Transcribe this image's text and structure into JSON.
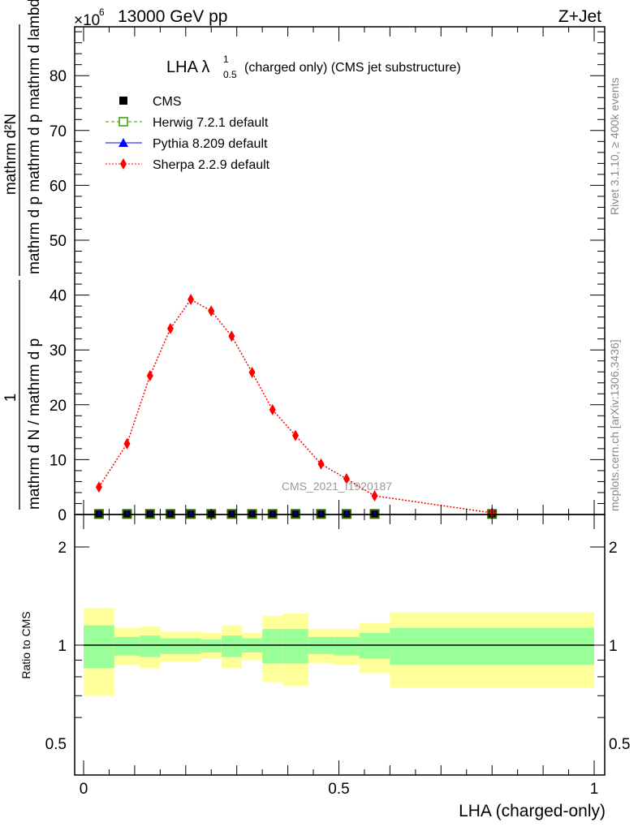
{
  "header": {
    "energy_label": "13000 GeV pp",
    "process_label": "Z+Jet",
    "exponent_label": "×10",
    "exponent_power": "6"
  },
  "side_labels": {
    "rivet": "Rivet 3.1.10, ≥ 400k events",
    "mcplots": "mcplots.cern.ch [arXiv:1306.3436]"
  },
  "watermark": "CMS_2021_I1920187",
  "chart_data": [
    {
      "type": "line",
      "title": "LHA λ",
      "title_sup": "1",
      "title_sub": "0.5",
      "title_rest": "(charged only) (CMS jet substructure)",
      "ylabel_num1": "1",
      "ylabel_den1": "mathrm d N / mathrm d p",
      "ylabel_num2": "mathrm d²N",
      "ylabel_den2": "mathrm d p  mathrm d p  mathrm d lambda",
      "xlim": [
        0,
        1
      ],
      "ylim": [
        0,
        88
      ],
      "yticks": [
        0,
        10,
        20,
        30,
        40,
        50,
        60,
        70,
        80
      ],
      "legend": [
        "CMS",
        "Herwig 7.2.1 default",
        "Pythia 8.209 default",
        "Sherpa 2.2.9 default"
      ],
      "legend_placement": "top-left",
      "x": [
        0.03,
        0.085,
        0.13,
        0.17,
        0.21,
        0.25,
        0.29,
        0.33,
        0.37,
        0.415,
        0.465,
        0.515,
        0.57,
        0.8
      ],
      "series": [
        {
          "name": "CMS",
          "color": "#000000",
          "values": [
            0.1,
            0.1,
            0.1,
            0.1,
            0.1,
            0.1,
            0.1,
            0.1,
            0.1,
            0.1,
            0.1,
            0.1,
            0.1,
            0.1
          ]
        },
        {
          "name": "Herwig 7.2.1 default",
          "color": "#339900",
          "values": [
            0.1,
            0.1,
            0.1,
            0.1,
            0.1,
            0.1,
            0.1,
            0.1,
            0.1,
            0.1,
            0.1,
            0.1,
            0.1,
            0.1
          ]
        },
        {
          "name": "Pythia 8.209 default",
          "color": "#0000ff",
          "values": [
            0.1,
            0.1,
            0.1,
            0.1,
            0.1,
            0.1,
            0.1,
            0.1,
            0.1,
            0.1,
            0.1,
            0.1,
            0.1,
            0.1
          ]
        },
        {
          "name": "Sherpa 2.2.9 default",
          "color": "#ff0000",
          "values": [
            5.0,
            12.9,
            25.3,
            33.9,
            39.2,
            37.1,
            32.5,
            25.9,
            19.1,
            14.4,
            9.2,
            6.5,
            3.4,
            0.3
          ]
        }
      ]
    },
    {
      "type": "area",
      "ylabel": "Ratio to CMS",
      "xlabel": "LHA (charged-only)",
      "xlim": [
        0,
        1
      ],
      "ylim": [
        0.6,
        2.3
      ],
      "yscale": "log",
      "yticks": [
        "0.5",
        "1",
        "2"
      ],
      "xticks": [
        "0",
        "0.5",
        "1"
      ],
      "bin_edges": [
        0,
        0.06,
        0.11,
        0.15,
        0.23,
        0.27,
        0.31,
        0.35,
        0.39,
        0.44,
        0.49,
        0.54,
        0.6,
        1.0
      ],
      "yellow_band": {
        "color": "#ffff99",
        "upper": [
          1.3,
          1.13,
          1.14,
          1.1,
          1.09,
          1.15,
          1.09,
          1.23,
          1.25,
          1.12,
          1.12,
          1.17,
          1.26
        ],
        "lower": [
          0.7,
          0.87,
          0.85,
          0.89,
          0.91,
          0.85,
          0.9,
          0.77,
          0.75,
          0.88,
          0.87,
          0.82,
          0.74
        ]
      },
      "green_band": {
        "color": "#99ff99",
        "upper": [
          1.15,
          1.06,
          1.07,
          1.05,
          1.04,
          1.07,
          1.05,
          1.12,
          1.12,
          1.06,
          1.06,
          1.09,
          1.13
        ],
        "lower": [
          0.85,
          0.93,
          0.92,
          0.94,
          0.95,
          0.92,
          0.95,
          0.88,
          0.88,
          0.94,
          0.93,
          0.91,
          0.87
        ]
      },
      "reference_line": 1
    }
  ]
}
